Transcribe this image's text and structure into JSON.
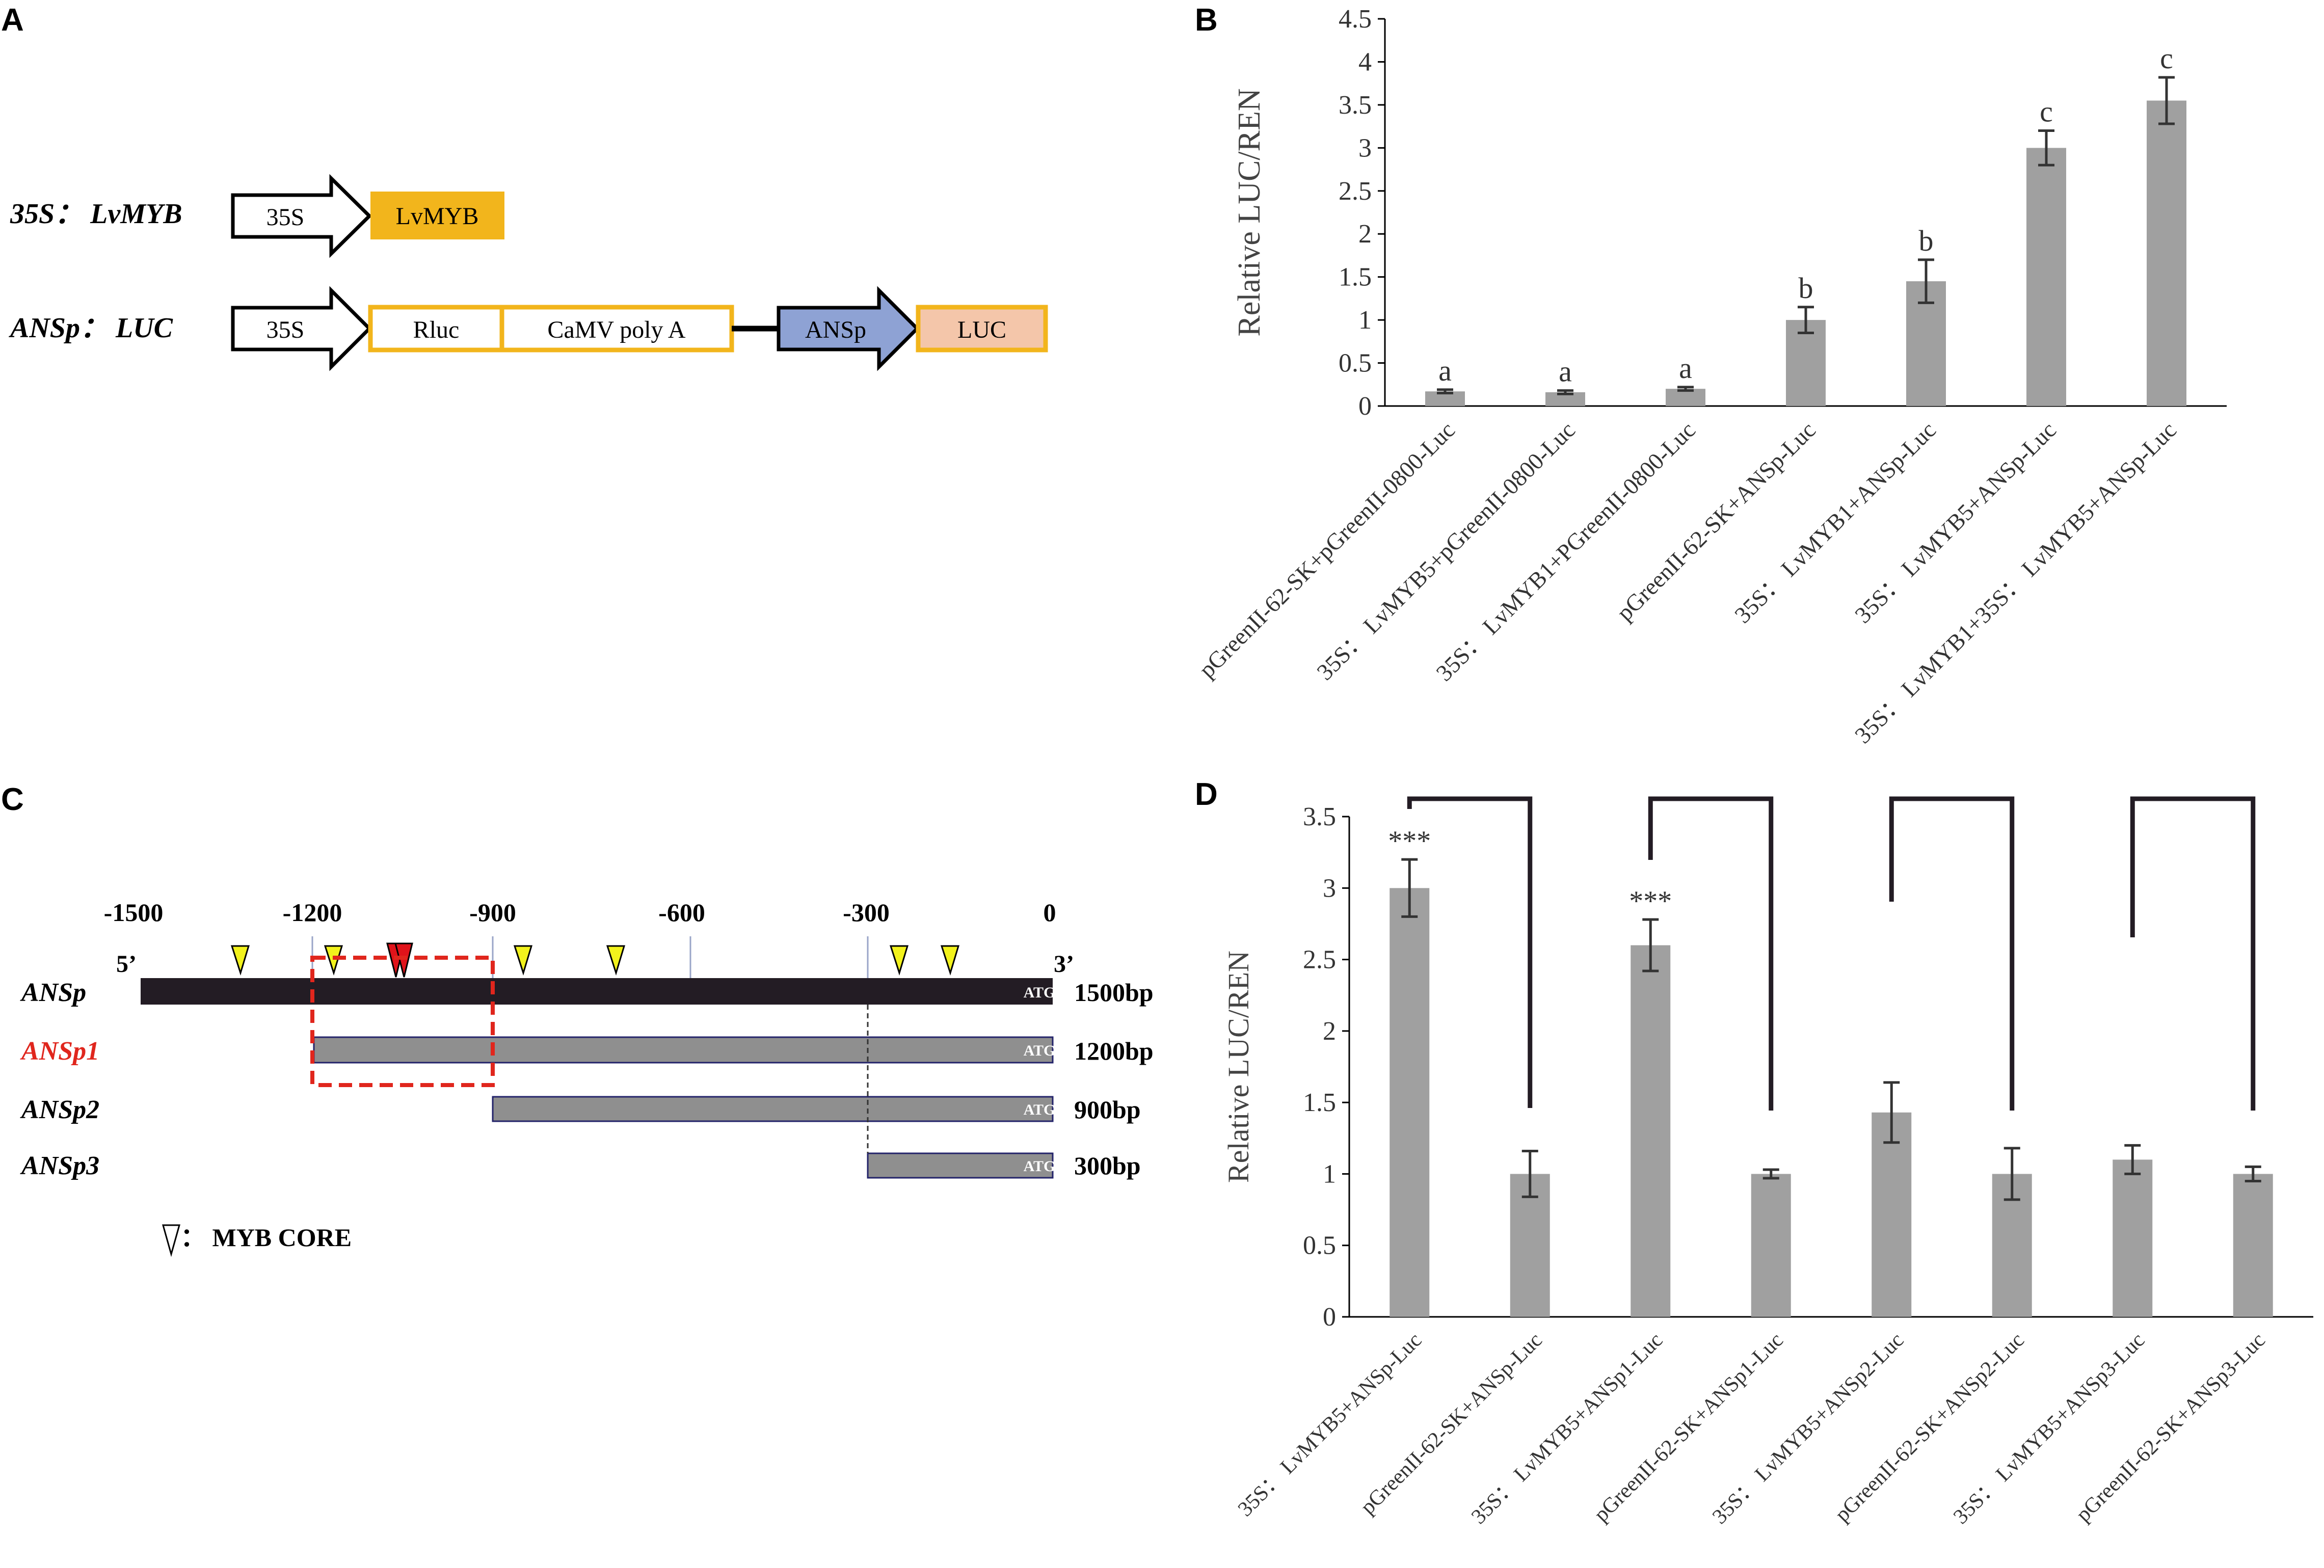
{
  "panels": {
    "A": {
      "label": "A",
      "construct1": {
        "name": "35S： LvMYB",
        "promoter": "35S",
        "gene": "LvMYB"
      },
      "construct2": {
        "name": "ANSp： LUC",
        "promoter": "35S",
        "box1": "Rluc",
        "box2": "CaMV poly A",
        "arrow2": "ANSp",
        "box3": "LUC"
      },
      "colors": {
        "gold": "#f2b51c",
        "blue": "#8ea2d4",
        "peach": "#f4c6aa"
      }
    },
    "B": {
      "label": "B"
    },
    "C": {
      "label": "C",
      "ticks": [
        "-1500",
        "-1200",
        "-900",
        "-600",
        "-300",
        "0"
      ],
      "five_prime": "5’",
      "three_prime": "3’",
      "rows": [
        {
          "name": "ANSp",
          "size": "1500bp",
          "atg": "ATG",
          "color": "#000000"
        },
        {
          "name": "ANSp1",
          "size": "1200bp",
          "atg": "ATG",
          "color": "#e0261d"
        },
        {
          "name": "ANSp2",
          "size": "900bp",
          "atg": "ATG",
          "color": "#000000"
        },
        {
          "name": "ANSp3",
          "size": "300bp",
          "atg": "ATG",
          "color": "#000000"
        }
      ],
      "legend": "： MYB CORE",
      "colors": {
        "bar_full": "#231c24",
        "bar_partial": "#8f8f8f",
        "myb_core": "#f2f21c",
        "myb_core_highlight": "#e0131a",
        "dashed_box": "#e0261d"
      }
    },
    "D": {
      "label": "D"
    }
  },
  "chart_data": [
    {
      "panel": "B",
      "type": "bar",
      "title": "",
      "xlabel": "",
      "ylabel": "Relative LUC/REN",
      "ylim": [
        0,
        4.5
      ],
      "yticks": [
        "0",
        "0.5",
        "1",
        "1.5",
        "2",
        "2.5",
        "3",
        "3.5",
        "4",
        "4.5"
      ],
      "categories": [
        "pGreenII-62-SK+pGreenII-0800-Luc",
        "35S： LvMYB5+pGreenII-0800-Luc",
        "35S： LvMYB1+PGreenII-0800-Luc",
        "pGreenII-62-SK+ANSp-Luc",
        "35S： LvMYB1+ANSp-Luc",
        "35S： LvMYB5+ANSp-Luc",
        "35S： LvMYB1+35S： LvMYB5+ANSp-Luc"
      ],
      "values": [
        0.17,
        0.16,
        0.2,
        1.0,
        1.45,
        3.0,
        3.55
      ],
      "errors": [
        0.02,
        0.02,
        0.02,
        0.15,
        0.25,
        0.2,
        0.27
      ],
      "significance": [
        "a",
        "a",
        "a",
        "b",
        "b",
        "c",
        "c"
      ],
      "bar_color": "#a0a0a0",
      "grid": false
    },
    {
      "panel": "D",
      "type": "bar",
      "title": "",
      "xlabel": "",
      "ylabel": "Relative LUC/REN",
      "ylim": [
        0,
        3.5
      ],
      "yticks": [
        "0",
        "0.5",
        "1",
        "1.5",
        "2",
        "2.5",
        "3",
        "3.5"
      ],
      "categories": [
        "35S： LvMYB5+ANSp-Luc",
        "pGreenII-62-SK+ANSp-Luc",
        "35S： LvMYB5+ANSp1-Luc",
        "pGreenII-62-SK+ANSp1-Luc",
        "35S： LvMYB5+ANSp2-Luc",
        "pGreenII-62-SK+ANSp2-Luc",
        "35S： LvMYB5+ANSp3-Luc",
        "pGreenII-62-SK+ANSp3-Luc"
      ],
      "values": [
        3.0,
        1.0,
        2.6,
        1.0,
        1.43,
        1.0,
        1.1,
        1.0
      ],
      "errors": [
        0.2,
        0.16,
        0.18,
        0.03,
        0.21,
        0.18,
        0.1,
        0.05
      ],
      "significance": [
        "***",
        "",
        "***",
        "",
        "",
        "",
        "",
        ""
      ],
      "bar_color": "#a0a0a0",
      "grid": false
    }
  ]
}
